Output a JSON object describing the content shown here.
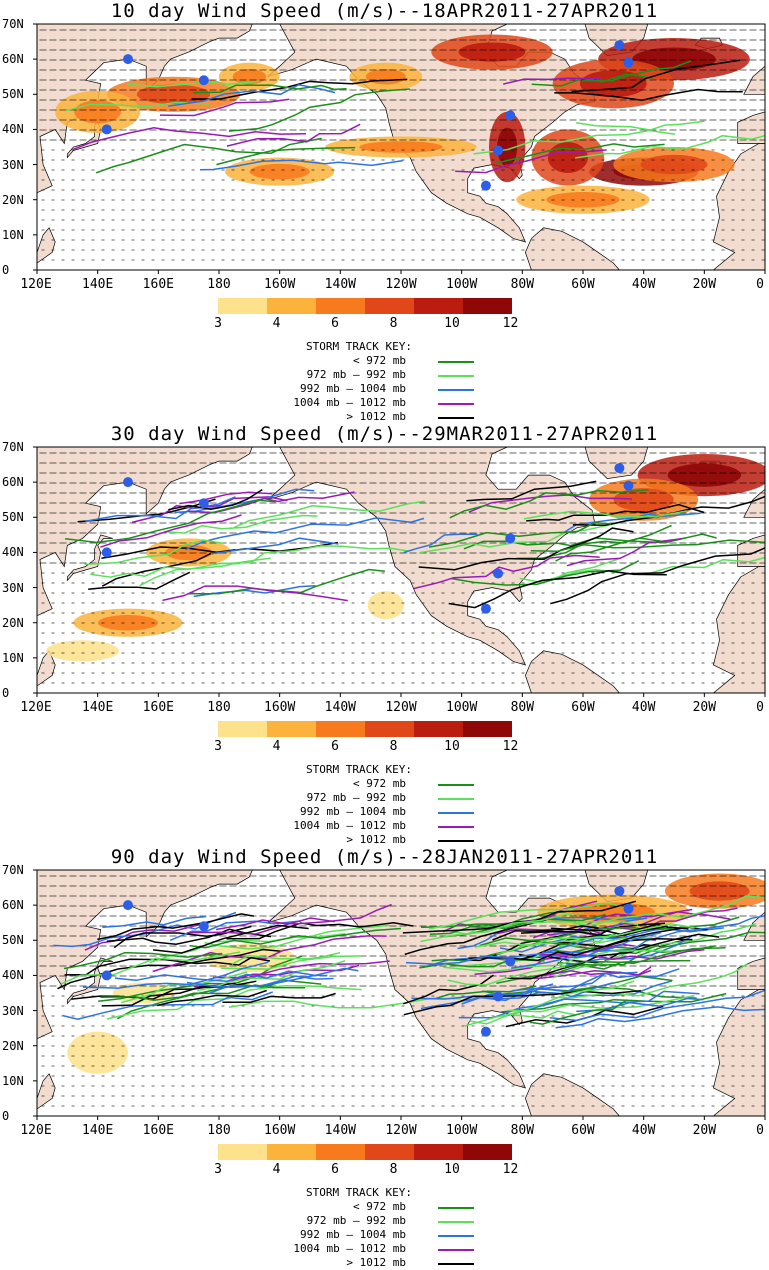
{
  "panels": [
    {
      "title": "10 day Wind Speed (m/s)--18APR2011-27APR2011",
      "intensity": 1
    },
    {
      "title": "30 day Wind Speed (m/s)--29MAR2011-27APR2011",
      "intensity": 2
    },
    {
      "title": "90 day Wind Speed (m/s)--28JAN2011-27APR2011",
      "intensity": 3
    }
  ],
  "lat_labels": [
    "70N",
    "60N",
    "50N",
    "40N",
    "30N",
    "20N",
    "10N",
    "0"
  ],
  "lon_labels": [
    "120E",
    "140E",
    "160E",
    "180",
    "160W",
    "140W",
    "120W",
    "100W",
    "80W",
    "60W",
    "40W",
    "20W",
    "0"
  ],
  "colorbar": {
    "labels": [
      "3",
      "4",
      "6",
      "8",
      "10",
      "12"
    ],
    "colors": [
      "#fde28b",
      "#fbb33c",
      "#f77b1e",
      "#e0481a",
      "#bb1c10",
      "#8e0808"
    ]
  },
  "storm_key": {
    "title": "STORM TRACK KEY:",
    "rows": [
      {
        "label": "< 972 mb",
        "color": "#1a8f1a"
      },
      {
        "label": "972 mb –  992 mb",
        "color": "#5ce05c"
      },
      {
        "label": "992 mb – 1004 mb",
        "color": "#2d73e6"
      },
      {
        "label": "1004 mb – 1012 mb",
        "color": "#9a1ab8"
      },
      {
        "label": "> 1012 mb",
        "color": "#000000"
      }
    ]
  },
  "land_color": "#f1dccf",
  "marker_color": "#2c5ee8"
}
